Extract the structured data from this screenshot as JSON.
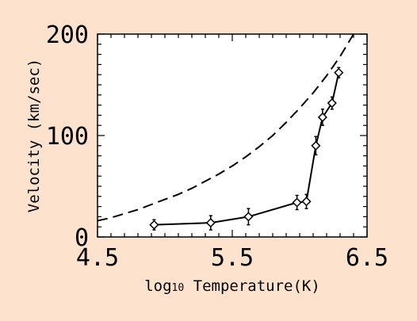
{
  "chart_data": {
    "type": "scatter",
    "title": "",
    "xlabel": "log10 Temperature(K)",
    "xlabel_parts": {
      "prefix": "log",
      "sub": "10",
      "suffix": " Temperature(K)"
    },
    "ylabel": "Velocity (km/sec)",
    "xlim": [
      4.5,
      6.5
    ],
    "ylim": [
      0,
      200
    ],
    "xticks": [
      4.5,
      5.5,
      6.5
    ],
    "xtick_labels": [
      "4.5",
      "5.5",
      "6.5"
    ],
    "yticks": [
      0,
      100,
      200
    ],
    "ytick_labels": [
      "0",
      "100",
      "200"
    ],
    "grid": false,
    "series": [
      {
        "style": "solid line with diamond markers and error bars",
        "x": [
          4.92,
          5.34,
          5.62,
          5.98,
          6.05,
          6.12,
          6.17,
          6.24,
          6.29
        ],
        "y": [
          12,
          14,
          20,
          34,
          35,
          90,
          118,
          132,
          162
        ],
        "err": [
          5,
          7,
          8,
          7,
          7,
          9,
          8,
          6,
          5
        ]
      },
      {
        "style": "dashed curve",
        "x": [
          4.5,
          4.6,
          4.7,
          4.8,
          4.9,
          5.0,
          5.1,
          5.2,
          5.3,
          5.4,
          5.5,
          5.6,
          5.7,
          5.8,
          5.9,
          6.0,
          6.1,
          6.2,
          6.3,
          6.4
        ],
        "y": [
          16,
          19,
          23,
          27,
          32,
          37,
          42,
          48,
          55,
          62,
          70,
          79,
          89,
          100,
          113,
          127,
          142,
          159,
          178,
          200
        ]
      }
    ]
  }
}
